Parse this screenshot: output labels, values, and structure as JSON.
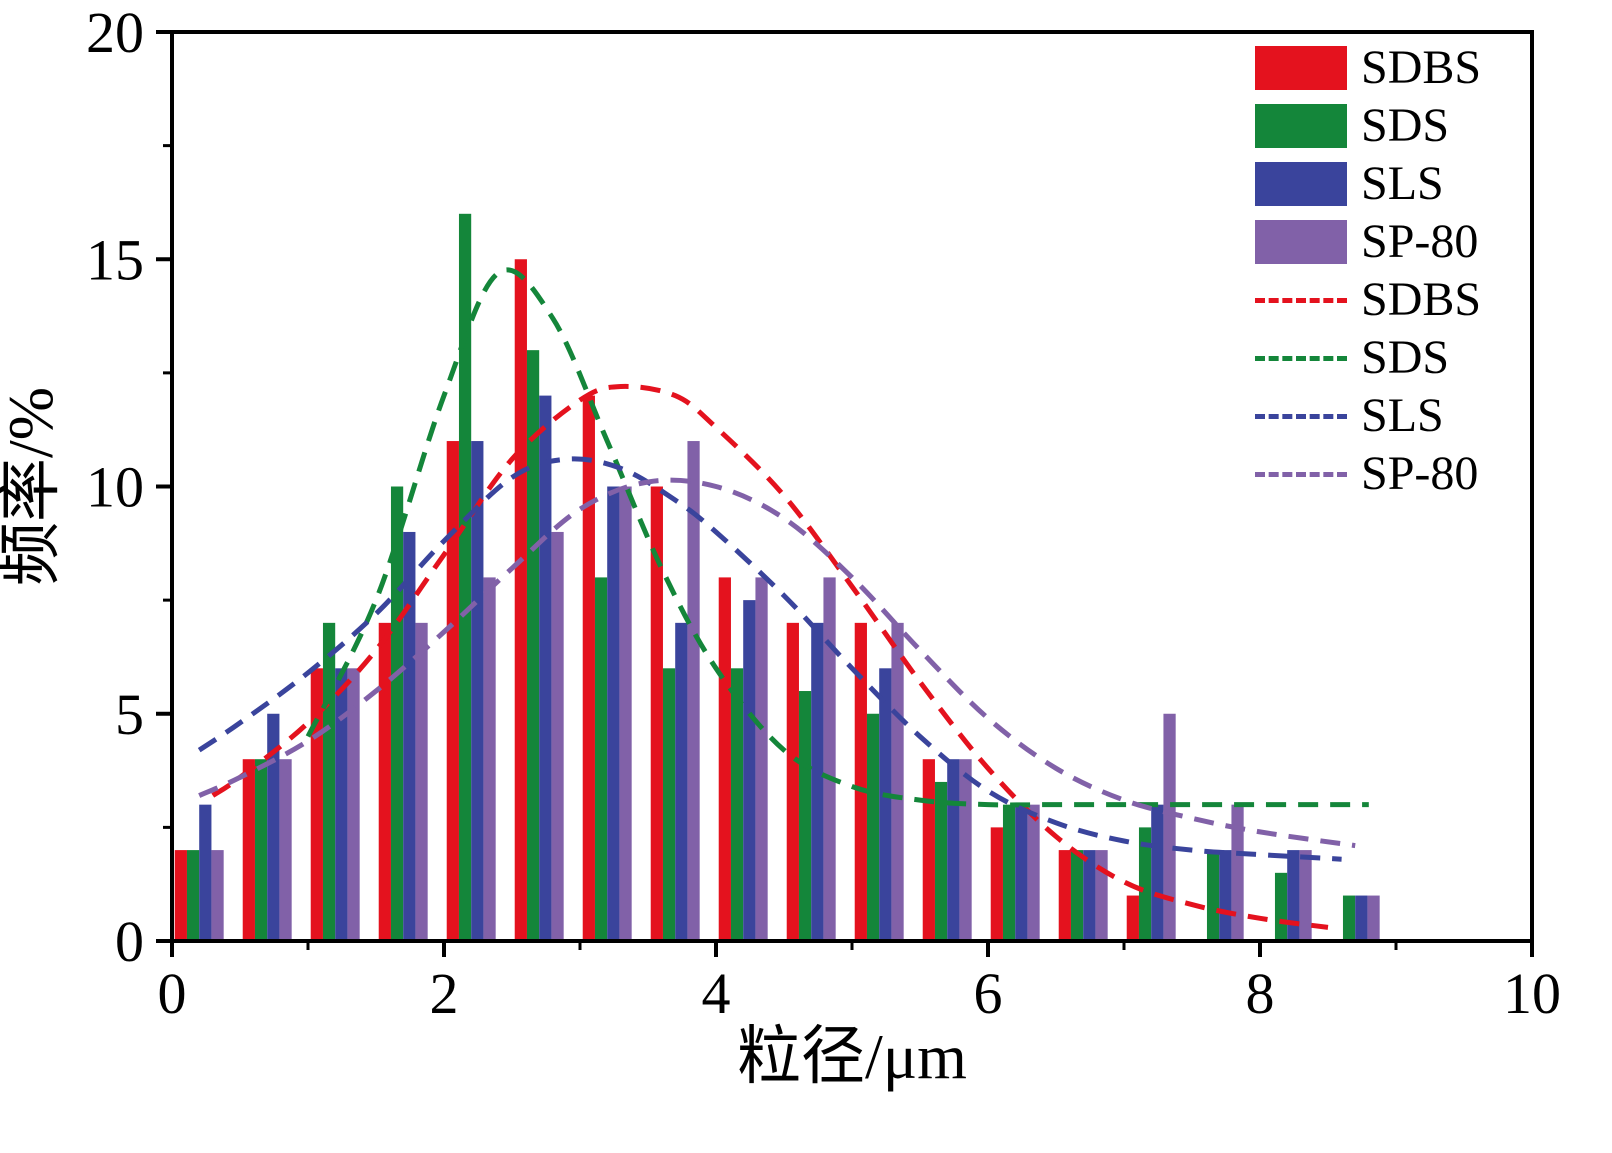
{
  "figure": {
    "background": "#ffffff",
    "frame_color": "#000000"
  },
  "axes": {
    "x_label": "粒径/μm",
    "y_label": "频率/%",
    "x_ticks": [
      0,
      2,
      4,
      6,
      8,
      10
    ],
    "x_minor_ticks": [
      1,
      3,
      5,
      7,
      9
    ],
    "y_ticks": [
      0,
      5,
      10,
      15,
      20
    ],
    "y_minor_ticks": [
      2.5,
      7.5,
      12.5,
      17.5
    ],
    "x_range": [
      0,
      10
    ],
    "y_range": [
      0,
      20
    ]
  },
  "legend": {
    "entries": [
      {
        "type": "rect",
        "label": "SDBS",
        "color": "#e4121e"
      },
      {
        "type": "rect",
        "label": "SDS",
        "color": "#14863a"
      },
      {
        "type": "rect",
        "label": "SLS",
        "color": "#3a449c"
      },
      {
        "type": "rect",
        "label": "SP-80",
        "color": "#8161a8"
      },
      {
        "type": "dash",
        "label": "SDBS",
        "color": "#e4121e"
      },
      {
        "type": "dash",
        "label": "SDS",
        "color": "#14863a"
      },
      {
        "type": "dash",
        "label": "SLS",
        "color": "#3a449c"
      },
      {
        "type": "dash",
        "label": "SP-80",
        "color": "#8161a8"
      }
    ]
  },
  "chart_data": {
    "type": "bar",
    "title": "",
    "xlabel": "粒径/μm",
    "ylabel": "频率/%",
    "xlim": [
      0,
      10
    ],
    "ylim": [
      0,
      20
    ],
    "grid": false,
    "legend_position": "top-right",
    "categories": [
      0.2,
      0.7,
      1.2,
      1.7,
      2.2,
      2.7,
      3.2,
      3.7,
      4.2,
      4.7,
      5.2,
      5.7,
      6.2,
      6.7,
      7.2,
      7.7,
      8.2,
      8.7
    ],
    "series": [
      {
        "name": "SDBS",
        "color": "#e4121e",
        "values": [
          2,
          4,
          6,
          7,
          11,
          15,
          12,
          10,
          8,
          7,
          7,
          4,
          2.5,
          2,
          1,
          0,
          0,
          0
        ]
      },
      {
        "name": "SDS",
        "color": "#14863a",
        "values": [
          2,
          4,
          7,
          10,
          16,
          13,
          8,
          6,
          6,
          5.5,
          5,
          3.5,
          3,
          2,
          2.5,
          2,
          1.5,
          1
        ]
      },
      {
        "name": "SLS",
        "color": "#3a449c",
        "values": [
          3,
          5,
          6,
          9,
          11,
          12,
          10,
          7,
          7.5,
          7,
          6,
          4,
          3,
          2,
          3,
          2,
          2,
          1
        ]
      },
      {
        "name": "SP-80",
        "color": "#8161a8",
        "values": [
          2,
          4,
          6,
          7,
          8,
          9,
          10,
          11,
          8,
          8,
          7,
          4,
          3,
          2,
          5,
          3,
          2,
          1
        ]
      }
    ],
    "fit_curves": [
      {
        "name": "SDBS",
        "color": "#e4121e",
        "points": [
          [
            0.3,
            3.2
          ],
          [
            0.5,
            3.6
          ],
          [
            1.0,
            4.8
          ],
          [
            1.5,
            6.4
          ],
          [
            2.0,
            8.5
          ],
          [
            2.5,
            10.6
          ],
          [
            3.0,
            11.9
          ],
          [
            3.3,
            12.2
          ],
          [
            3.7,
            12.0
          ],
          [
            4.0,
            11.3
          ],
          [
            4.5,
            9.8
          ],
          [
            5.0,
            7.8
          ],
          [
            5.5,
            5.7
          ],
          [
            6.0,
            3.8
          ],
          [
            6.5,
            2.3
          ],
          [
            7.0,
            1.3
          ],
          [
            7.5,
            0.8
          ],
          [
            8.0,
            0.5
          ],
          [
            8.5,
            0.3
          ]
        ]
      },
      {
        "name": "SDS",
        "color": "#14863a",
        "points": [
          [
            1.0,
            4.5
          ],
          [
            1.5,
            7.5
          ],
          [
            2.0,
            12.0
          ],
          [
            2.4,
            14.7
          ],
          [
            2.8,
            13.7
          ],
          [
            3.2,
            11.0
          ],
          [
            3.6,
            8.2
          ],
          [
            4.0,
            6.0
          ],
          [
            4.5,
            4.2
          ],
          [
            5.0,
            3.4
          ],
          [
            5.5,
            3.1
          ],
          [
            6.0,
            3.0
          ],
          [
            6.5,
            3.0
          ],
          [
            7.0,
            3.0
          ],
          [
            7.5,
            3.0
          ],
          [
            8.0,
            3.0
          ],
          [
            8.5,
            3.0
          ],
          [
            8.8,
            3.0
          ]
        ]
      },
      {
        "name": "SLS",
        "color": "#3a449c",
        "points": [
          [
            0.2,
            4.2
          ],
          [
            0.5,
            4.8
          ],
          [
            1.0,
            5.9
          ],
          [
            1.5,
            7.2
          ],
          [
            2.0,
            8.8
          ],
          [
            2.5,
            10.2
          ],
          [
            2.9,
            10.6
          ],
          [
            3.3,
            10.4
          ],
          [
            3.7,
            9.7
          ],
          [
            4.0,
            9.0
          ],
          [
            4.5,
            7.6
          ],
          [
            5.0,
            6.0
          ],
          [
            5.5,
            4.5
          ],
          [
            6.0,
            3.3
          ],
          [
            6.5,
            2.6
          ],
          [
            7.0,
            2.2
          ],
          [
            7.5,
            2.0
          ],
          [
            8.0,
            1.9
          ],
          [
            8.6,
            1.8
          ]
        ]
      },
      {
        "name": "SP-80",
        "color": "#8161a8",
        "points": [
          [
            0.2,
            3.2
          ],
          [
            0.5,
            3.6
          ],
          [
            1.0,
            4.4
          ],
          [
            1.5,
            5.5
          ],
          [
            2.0,
            6.8
          ],
          [
            2.5,
            8.2
          ],
          [
            3.0,
            9.5
          ],
          [
            3.5,
            10.1
          ],
          [
            4.0,
            10.0
          ],
          [
            4.5,
            9.3
          ],
          [
            5.0,
            8.0
          ],
          [
            5.5,
            6.4
          ],
          [
            6.0,
            4.9
          ],
          [
            6.5,
            3.8
          ],
          [
            7.0,
            3.1
          ],
          [
            7.5,
            2.7
          ],
          [
            8.0,
            2.4
          ],
          [
            8.7,
            2.1
          ]
        ]
      }
    ]
  }
}
